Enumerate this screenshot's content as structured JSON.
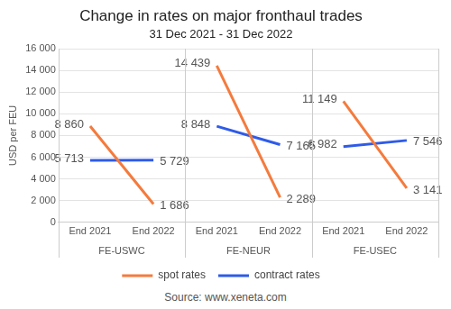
{
  "chart_data": {
    "type": "line",
    "title": "Change in rates on major fronthaul trades",
    "subtitle": "31 Dec 2021 - 31 Dec 2022",
    "source": "Source: www.xeneta.com",
    "y_label": "USD per FEU",
    "groups": [
      "FE-USWC",
      "FE-NEUR",
      "FE-USEC"
    ],
    "categories": [
      "End 2021",
      "End 2022",
      "End 2021",
      "End 2022",
      "End 2021",
      "End 2022"
    ],
    "series": [
      {
        "name": "spot rates",
        "color": "#f47b3d",
        "values": [
          8860,
          1686,
          14439,
          2289,
          11149,
          3141
        ],
        "value_labels": [
          "8 860",
          "1 686",
          "14 439",
          "2 289",
          "11 149",
          "3 141"
        ]
      },
      {
        "name": "contract rates",
        "color": "#2f5be8",
        "values": [
          5713,
          5729,
          8848,
          7165,
          6982,
          7546
        ],
        "value_labels": [
          "5 713",
          "5 729",
          "8 848",
          "7 165",
          "6 982",
          "7 546"
        ]
      }
    ],
    "ylim": [
      0,
      16000
    ],
    "yticks": [
      0,
      {
        "value": 2000,
        "label": "2 000"
      },
      {
        "value": 4000,
        "label": "4 000"
      },
      {
        "value": 6000,
        "label": "6 000"
      },
      {
        "value": 8000,
        "label": "8 000"
      },
      {
        "value": 10000,
        "label": "10 000"
      },
      {
        "value": 12000,
        "label": "12 000"
      },
      {
        "value": 14000,
        "label": "14 000"
      },
      {
        "value": 16000,
        "label": "16 000"
      }
    ],
    "grid": true,
    "legend": "bottom",
    "data_labels": true,
    "marker": "none"
  }
}
